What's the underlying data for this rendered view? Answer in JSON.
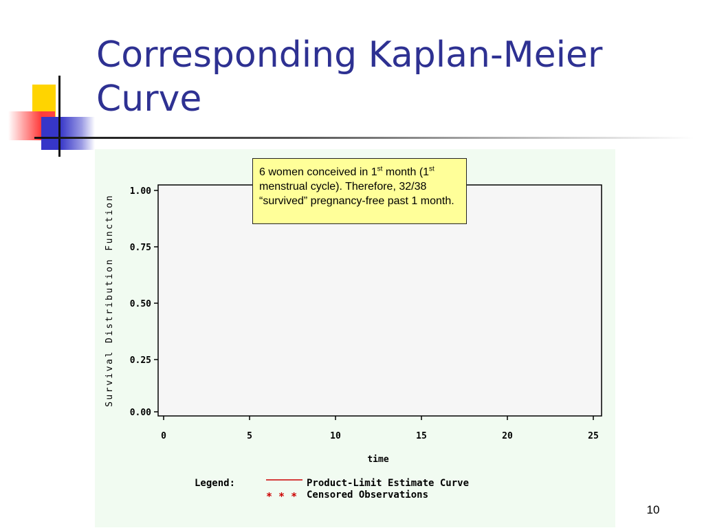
{
  "slide": {
    "title_line1": "Corresponding Kaplan-Meier",
    "title_line2": "Curve",
    "page_number": "10"
  },
  "callout": {
    "text": "6 women conceived in 1st month (1st menstrual cycle). Therefore, 32/38 “survived” pregnancy-free past 1 month."
  },
  "chart_data": {
    "type": "line",
    "xlabel": "time",
    "ylabel": "Survival Distribution Function",
    "xlim": [
      0,
      25
    ],
    "ylim": [
      0,
      1
    ],
    "x_ticks": [
      "0",
      "5",
      "10",
      "15",
      "20",
      "25"
    ],
    "y_ticks": [
      "0.00",
      "0.25",
      "0.50",
      "0.75",
      "1.00"
    ],
    "series": [],
    "grid": false,
    "legend": {
      "label": "Legend:",
      "entries": [
        {
          "marker": "line",
          "symbol": "",
          "text": "Product-Limit Estimate Curve"
        },
        {
          "marker": "stars",
          "symbol": "* * *",
          "text": "Censored Observations"
        }
      ],
      "placement": "bottom"
    },
    "colors": {
      "curve": "#cc0000",
      "axis": "#000000",
      "panel": "#f1fbf1"
    }
  }
}
